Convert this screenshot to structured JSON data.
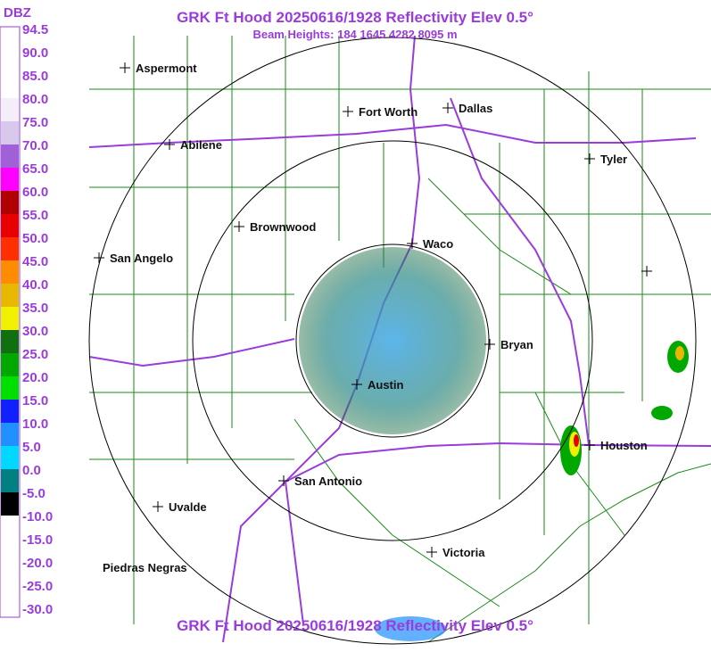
{
  "header": {
    "title": "GRK Ft Hood 20250616/1928 Reflectivity Elev 0.5°",
    "subtitle": "Beam Heights: 184 1645 4282 8095 m",
    "footer_title": "GRK Ft Hood 20250616/1928 Reflectivity Elev 0.5°"
  },
  "color_scale": {
    "unit": "DBZ",
    "labels": [
      "94.5",
      "90.0",
      "85.0",
      "80.0",
      "75.0",
      "70.0",
      "65.0",
      "60.0",
      "55.0",
      "50.0",
      "45.0",
      "40.0",
      "35.0",
      "30.0",
      "25.0",
      "20.0",
      "15.0",
      "10.0",
      "5.0",
      "0.0",
      "-5.0",
      "-10.0",
      "-15.0",
      "-20.0",
      "-25.0",
      "-30.0"
    ],
    "colors": [
      "#ffffff",
      "#ffffff",
      "#ffffff",
      "#f4eef8",
      "#d8c8ec",
      "#a060d8",
      "#ff00ff",
      "#b00000",
      "#e80000",
      "#ff3000",
      "#ff8c00",
      "#e8b800",
      "#f0f000",
      "#107010",
      "#00a800",
      "#00e000",
      "#1020ff",
      "#2090ff",
      "#00d8ff",
      "#008080",
      "#000000",
      "#ffffff",
      "#ffffff",
      "#ffffff",
      "#ffffff"
    ]
  },
  "cities": [
    {
      "label": "Aspermont"
    },
    {
      "label": "Fort Worth"
    },
    {
      "label": "Dallas"
    },
    {
      "label": "Abilene"
    },
    {
      "label": "Tyler"
    },
    {
      "label": "Brownwood"
    },
    {
      "label": "Waco"
    },
    {
      "label": "San Angelo"
    },
    {
      "label": "Bryan"
    },
    {
      "label": "Austin"
    },
    {
      "label": "Houston"
    },
    {
      "label": "San Antonio"
    },
    {
      "label": "Uvalde"
    },
    {
      "label": "Victoria"
    },
    {
      "label": "Piedras Negras"
    }
  ]
}
